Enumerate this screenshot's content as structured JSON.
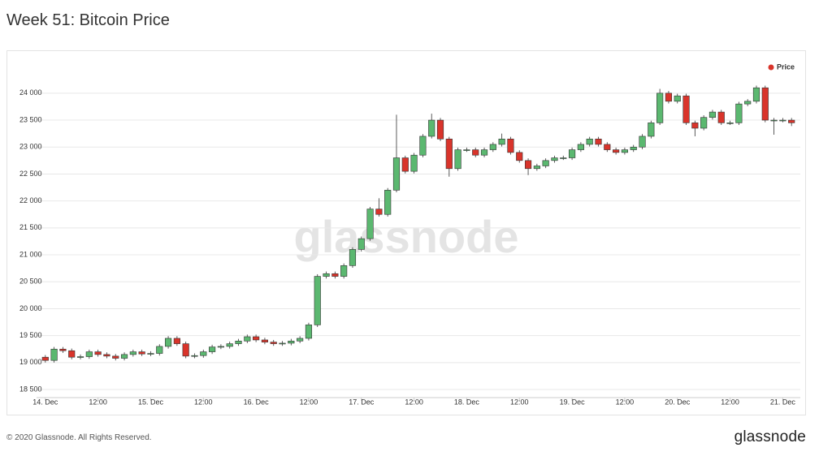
{
  "chart_data": {
    "type": "candlestick",
    "title": "Week 51: Bitcoin Price",
    "watermark": "glassnode",
    "footer": "© 2020 Glassnode. All Rights Reserved.",
    "brand": "glassnode",
    "legend_position": "top-right",
    "grid": true,
    "x": [
      0,
      2,
      4,
      6,
      8,
      10,
      12,
      14,
      16,
      18,
      20,
      22,
      24,
      26,
      28,
      30,
      32,
      34,
      36,
      38,
      40,
      42,
      44,
      46,
      48,
      50,
      52,
      54,
      56,
      58,
      60,
      62,
      64,
      66,
      68,
      70,
      72,
      74,
      76,
      78,
      80,
      82,
      84,
      86,
      88,
      90,
      92,
      94,
      96,
      98,
      100,
      102,
      104,
      106,
      108,
      110,
      112,
      114,
      116,
      118,
      120,
      122,
      124,
      126,
      128,
      130,
      132,
      134,
      136,
      138,
      140,
      142,
      144,
      146,
      148,
      150,
      152,
      154,
      156,
      158,
      160,
      162,
      164,
      166,
      168,
      170
    ],
    "xlim": [
      -2,
      172
    ],
    "xticks": [
      {
        "value": 0,
        "label": "14. Dec"
      },
      {
        "value": 12,
        "label": "12:00"
      },
      {
        "value": 24,
        "label": "15. Dec"
      },
      {
        "value": 36,
        "label": "12:00"
      },
      {
        "value": 48,
        "label": "16. Dec"
      },
      {
        "value": 60,
        "label": "12:00"
      },
      {
        "value": 72,
        "label": "17. Dec"
      },
      {
        "value": 84,
        "label": "12:00"
      },
      {
        "value": 96,
        "label": "18. Dec"
      },
      {
        "value": 108,
        "label": "12:00"
      },
      {
        "value": 120,
        "label": "19. Dec"
      },
      {
        "value": 132,
        "label": "12:00"
      },
      {
        "value": 144,
        "label": "20. Dec"
      },
      {
        "value": 156,
        "label": "12:00"
      },
      {
        "value": 168,
        "label": "21. Dec"
      }
    ],
    "ylim": [
      18350,
      24600
    ],
    "yticks": [
      {
        "value": 18500,
        "label": "18 500"
      },
      {
        "value": 19000,
        "label": "19 000"
      },
      {
        "value": 19500,
        "label": "19 500"
      },
      {
        "value": 20000,
        "label": "20 000"
      },
      {
        "value": 20500,
        "label": "20 500"
      },
      {
        "value": 21000,
        "label": "21 000"
      },
      {
        "value": 21500,
        "label": "21 500"
      },
      {
        "value": 22000,
        "label": "22 000"
      },
      {
        "value": 22500,
        "label": "22 500"
      },
      {
        "value": 23000,
        "label": "23 000"
      },
      {
        "value": 23500,
        "label": "23 500"
      },
      {
        "value": 24000,
        "label": "24 000"
      }
    ],
    "series": [
      {
        "name": "Price",
        "color": "#d9342b",
        "up_color": "#5bb870",
        "down_color": "#d9342b",
        "open": [
          19100,
          19040,
          19250,
          19220,
          19100,
          19110,
          19200,
          19150,
          19120,
          19080,
          19150,
          19200,
          19160,
          19170,
          19300,
          19450,
          19350,
          19120,
          19130,
          19200,
          19290,
          19300,
          19350,
          19400,
          19480,
          19420,
          19380,
          19350,
          19360,
          19400,
          19450,
          19700,
          20600,
          20650,
          20600,
          20800,
          21100,
          21300,
          21850,
          21750,
          22200,
          22800,
          22550,
          22850,
          23200,
          23500,
          23150,
          22600,
          22950,
          22950,
          22850,
          22950,
          23050,
          23150,
          22900,
          22750,
          22600,
          22650,
          22750,
          22800,
          22800,
          22950,
          23050,
          23150,
          23050,
          22950,
          22900,
          22950,
          23000,
          23200,
          23450,
          24000,
          23850,
          23950,
          23450,
          23350,
          23550,
          23650,
          23450,
          23450,
          23800,
          23850,
          24100,
          23500,
          23500,
          23500
        ],
        "high": [
          19140,
          19290,
          19290,
          19260,
          19150,
          19240,
          19240,
          19190,
          19160,
          19190,
          19240,
          19240,
          19210,
          19340,
          19490,
          19490,
          19390,
          19170,
          19240,
          19330,
          19340,
          19390,
          19440,
          19520,
          19520,
          19460,
          19420,
          19400,
          19440,
          19490,
          19740,
          20640,
          20690,
          20690,
          20840,
          21140,
          21340,
          21890,
          22050,
          22240,
          23600,
          22840,
          22890,
          23240,
          23620,
          23540,
          23190,
          22990,
          22990,
          22990,
          22990,
          23090,
          23250,
          23190,
          22940,
          22790,
          22690,
          22790,
          22840,
          22840,
          22990,
          23090,
          23190,
          23190,
          23090,
          22990,
          22990,
          23040,
          23240,
          23490,
          24080,
          24040,
          23990,
          23990,
          23490,
          23590,
          23690,
          23690,
          23490,
          23840,
          23890,
          24140,
          24140,
          23540,
          23540,
          23540
        ],
        "low": [
          19000,
          19000,
          19180,
          19060,
          19060,
          19070,
          19110,
          19080,
          19040,
          19040,
          19110,
          19120,
          19120,
          19130,
          19260,
          19310,
          19080,
          19080,
          19090,
          19160,
          19250,
          19260,
          19310,
          19360,
          19380,
          19340,
          19310,
          19310,
          19320,
          19360,
          19410,
          19660,
          20560,
          20560,
          20560,
          20760,
          21060,
          21260,
          21710,
          21710,
          22160,
          22510,
          22510,
          22810,
          23160,
          23110,
          22450,
          22560,
          22910,
          22810,
          22810,
          22910,
          23010,
          22860,
          22710,
          22480,
          22560,
          22610,
          22710,
          22760,
          22760,
          22910,
          23010,
          23010,
          22910,
          22860,
          22860,
          22910,
          22960,
          23160,
          23410,
          23810,
          23810,
          23410,
          23200,
          23310,
          23510,
          23410,
          23410,
          23410,
          23760,
          23810,
          23460,
          23230,
          23460,
          23390
        ],
        "close": [
          19040,
          19250,
          19220,
          19100,
          19110,
          19200,
          19150,
          19120,
          19080,
          19150,
          19200,
          19160,
          19170,
          19300,
          19450,
          19350,
          19120,
          19130,
          19200,
          19290,
          19300,
          19350,
          19400,
          19480,
          19420,
          19380,
          19350,
          19360,
          19400,
          19450,
          19700,
          20600,
          20650,
          20600,
          20800,
          21100,
          21300,
          21850,
          21750,
          22200,
          22800,
          22550,
          22850,
          23200,
          23500,
          23150,
          22600,
          22950,
          22950,
          22850,
          22950,
          23050,
          23150,
          22900,
          22750,
          22600,
          22650,
          22750,
          22800,
          22800,
          22950,
          23050,
          23150,
          23050,
          22950,
          22900,
          22950,
          23000,
          23200,
          23450,
          24000,
          23850,
          23950,
          23450,
          23350,
          23550,
          23650,
          23450,
          23450,
          23800,
          23850,
          24100,
          23500,
          23500,
          23500,
          23450
        ]
      }
    ]
  }
}
